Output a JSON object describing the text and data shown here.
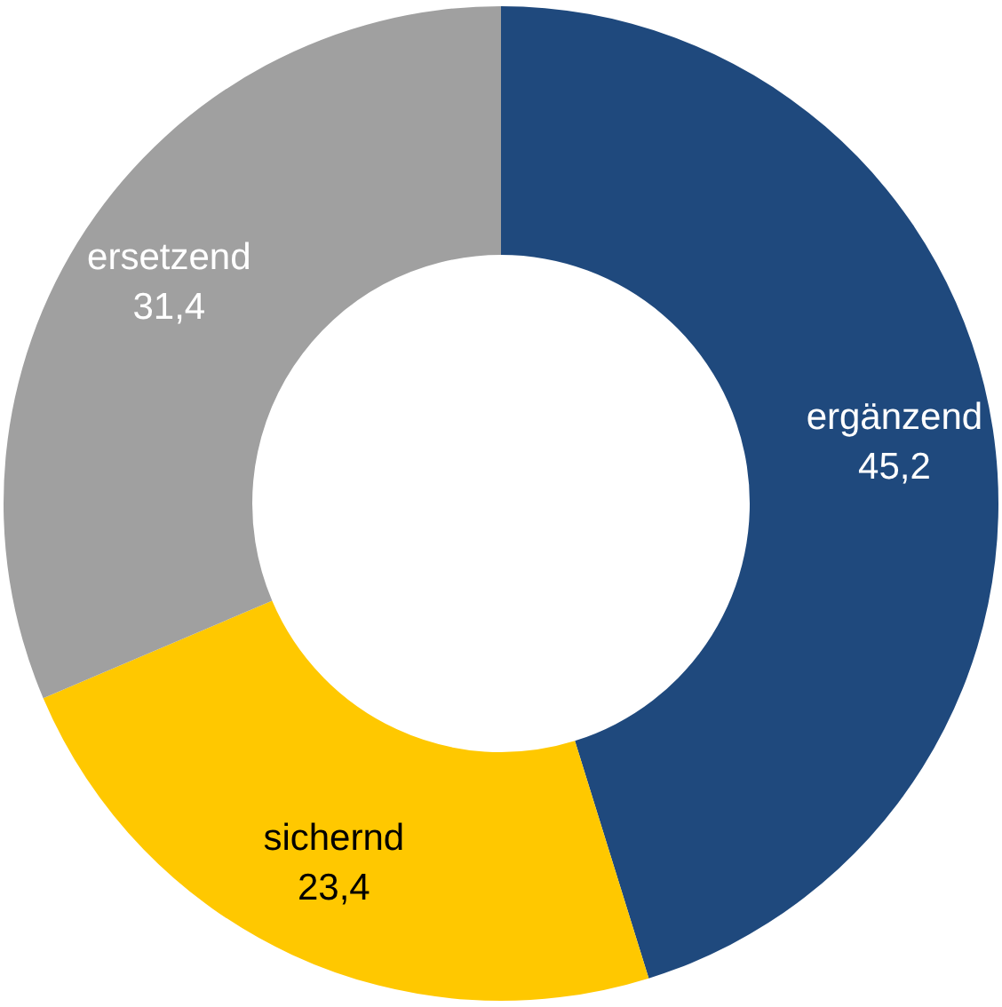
{
  "chart_data": {
    "type": "donut",
    "categories": [
      "ergänzend",
      "sichernd",
      "ersetzend"
    ],
    "values": [
      45.2,
      23.4,
      31.4
    ],
    "value_labels": [
      "45,2",
      "23,4",
      "31,4"
    ],
    "colors": [
      "#1f497d",
      "#ffc800",
      "#a0a0a0"
    ],
    "legend": false
  }
}
